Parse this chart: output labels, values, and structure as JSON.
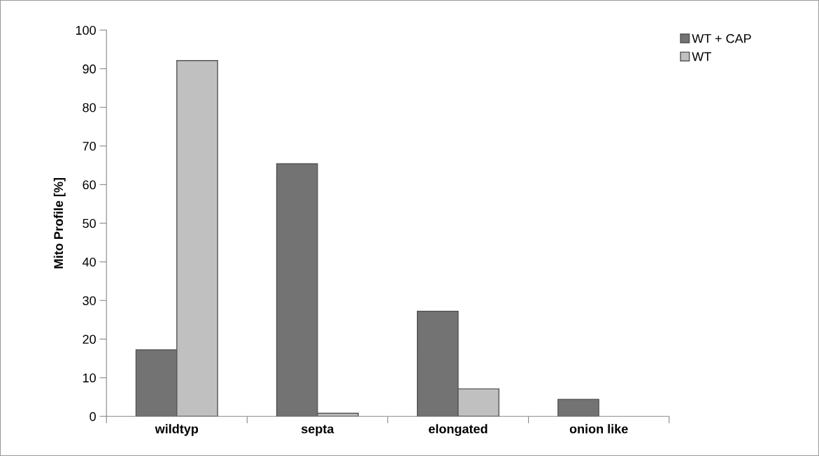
{
  "chart_data": {
    "type": "bar",
    "ylabel": "Mito Profile [%]",
    "categories": [
      "wildtyp",
      "septa",
      "elongated",
      "onion like"
    ],
    "series": [
      {
        "name": "WT + CAP",
        "color": "#737373",
        "values": [
          17.2,
          65.4,
          27.2,
          4.4
        ]
      },
      {
        "name": "WT",
        "color": "#c0c0c0",
        "values": [
          92.1,
          0.8,
          7.1,
          0
        ]
      }
    ],
    "ylim": [
      0,
      100
    ],
    "yticks": [
      0,
      10,
      20,
      30,
      40,
      50,
      60,
      70,
      80,
      90,
      100
    ],
    "grid": false,
    "legend": "top right"
  }
}
